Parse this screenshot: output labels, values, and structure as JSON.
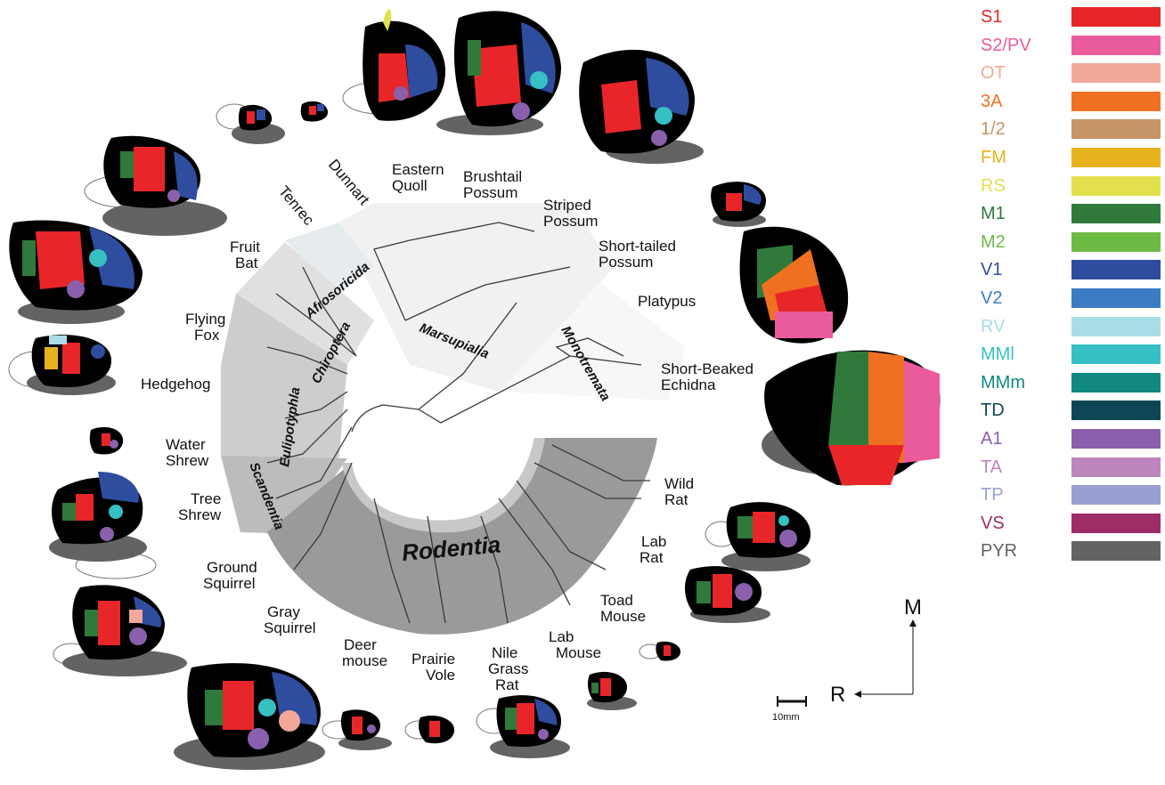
{
  "legend": [
    {
      "label": "S1",
      "color": "#e8262a"
    },
    {
      "label": "S2/PV",
      "color": "#ea5b9c"
    },
    {
      "label": "OT",
      "color": "#f2a898"
    },
    {
      "label": "3A",
      "color": "#f07021"
    },
    {
      "label": "1/2",
      "color": "#c59467"
    },
    {
      "label": "FM",
      "color": "#e8b21e"
    },
    {
      "label": "RS",
      "color": "#e3e04f"
    },
    {
      "label": "M1",
      "color": "#2f7a3a"
    },
    {
      "label": "M2",
      "color": "#6dbb45"
    },
    {
      "label": "V1",
      "color": "#2f4d9e"
    },
    {
      "label": "V2",
      "color": "#3b7cc4"
    },
    {
      "label": "RV",
      "color": "#a9dce6"
    },
    {
      "label": "MMl",
      "color": "#36c0c4"
    },
    {
      "label": "MMm",
      "color": "#11897f"
    },
    {
      "label": "TD",
      "color": "#0f4655"
    },
    {
      "label": "A1",
      "color": "#8a60ad"
    },
    {
      "label": "TA",
      "color": "#bd85be"
    },
    {
      "label": "TP",
      "color": "#9a9fd1"
    },
    {
      "label": "VS",
      "color": "#9e2c66"
    },
    {
      "label": "PYR",
      "color": "#636363"
    }
  ],
  "species": {
    "dunnart": "Dunnart",
    "eastern_quoll_1": "Eastern",
    "eastern_quoll_2": "Quoll",
    "brushtail_1": "Brushtail",
    "brushtail_2": "Possum",
    "striped_1": "Striped",
    "striped_2": "Possum",
    "shorttailed_1": "Short-tailed",
    "shorttailed_2": "Possum",
    "platypus": "Platypus",
    "echidna_1": "Short-Beaked",
    "echidna_2": "Echidna",
    "tenrec": "Tenrec",
    "fruitbat_1": "Fruit",
    "fruitbat_2": "Bat",
    "flyingfox_1": "Flying",
    "flyingfox_2": "Fox",
    "hedgehog": "Hedgehog",
    "watershrew_1": "Water",
    "watershrew_2": "Shrew",
    "treeshrew_1": "Tree",
    "treeshrew_2": "Shrew",
    "groundsq_1": "Ground",
    "groundsq_2": "Squirrel",
    "graysq_1": "Gray",
    "graysq_2": "Squirrel",
    "deermouse_1": "Deer",
    "deermouse_2": "mouse",
    "prairievole_1": "Prairie",
    "prairievole_2": "Vole",
    "nilerat_1": "Nile",
    "nilerat_2": "Grass",
    "nilerat_3": "Rat",
    "labmouse_1": "Lab",
    "labmouse_2": "Mouse",
    "toadmouse_1": "Toad",
    "toadmouse_2": "Mouse",
    "labrat_1": "Lab",
    "labrat_2": "Rat",
    "wildrat_1": "Wild",
    "wildrat_2": "Rat"
  },
  "orders": {
    "marsupialia": "Marsupialia",
    "monotremata": "Monotremata",
    "afrosoricida": "Afrosoricida",
    "chiroptera": "Chiroptera",
    "eulipotyphla": "Eulipotyphla",
    "scandentia": "Scandentia",
    "rodentia": "Rodentia"
  },
  "orientation": {
    "medial": "M",
    "rostral": "R"
  },
  "scale_bar_label": "10mm"
}
